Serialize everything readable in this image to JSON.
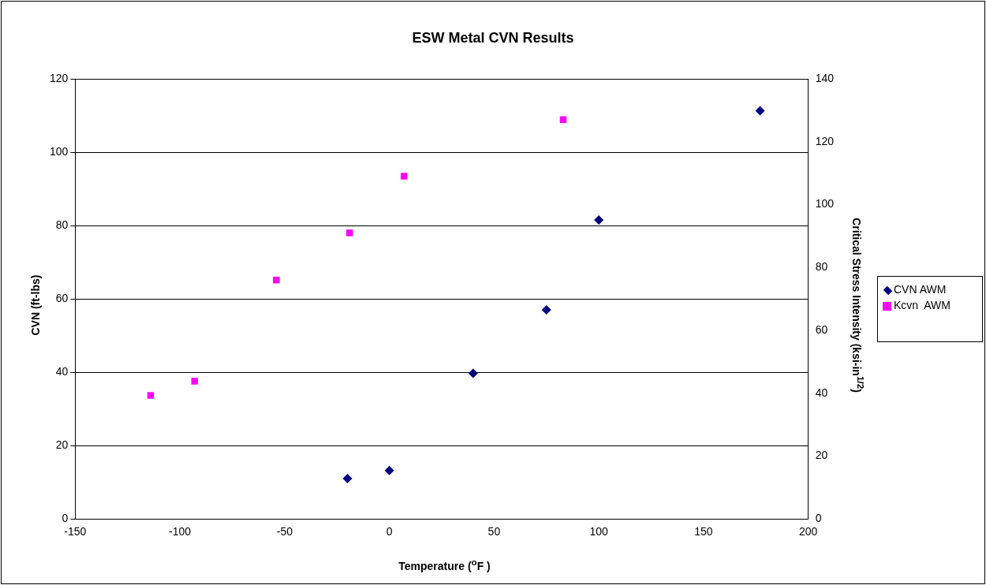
{
  "chart_data": {
    "type": "scatter",
    "title": "ESW Metal CVN Results",
    "xlabel": "Temperature ($^{o}$F )",
    "ylabel": "CVN (ft-lbs)",
    "y2label": "Critical Stress Intensity (ksi-in$^{1/2}$)",
    "xlim": [
      -150,
      200
    ],
    "xticks": [
      -150,
      -100,
      -50,
      0,
      50,
      100,
      150,
      200
    ],
    "ylim": [
      0,
      120
    ],
    "yticks": [
      0,
      20,
      40,
      60,
      80,
      100,
      120
    ],
    "y2lim": [
      0,
      140
    ],
    "y2ticks": [
      0,
      20,
      40,
      60,
      80,
      100,
      120,
      140
    ],
    "grid": "y",
    "legend": "right",
    "series": [
      {
        "name": "CVN AWM",
        "color": "#000080",
        "marker": "diamond",
        "x": [
          -20,
          0,
          40,
          75,
          100,
          177
        ],
        "values": [
          11,
          13.2,
          39.7,
          57,
          81.5,
          111.3
        ]
      },
      {
        "name": "Kcvn  AWM",
        "color": "#ff00ff",
        "marker": "square",
        "axis": "y2",
        "x": [
          -114,
          -93,
          -54,
          -19,
          7,
          83
        ],
        "values": [
          39.3,
          43.8,
          76,
          91,
          109,
          127
        ]
      }
    ]
  }
}
